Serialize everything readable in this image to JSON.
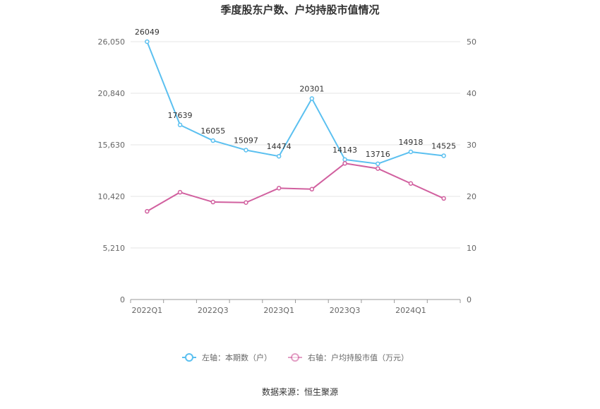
{
  "chart_data": {
    "type": "line",
    "title": "季度股东户数、户均持股市值情况",
    "categories": [
      "2022Q1",
      "2022Q2",
      "2022Q3",
      "2022Q4",
      "2023Q1",
      "2023Q2",
      "2023Q3",
      "2023Q4",
      "2024Q1",
      "2024Q2"
    ],
    "x_tick_labels": [
      "2022Q1",
      "",
      "2022Q3",
      "",
      "2023Q1",
      "",
      "2023Q3",
      "",
      "2024Q1",
      ""
    ],
    "y_left": {
      "ylim": [
        0,
        26050
      ],
      "ticks": [
        "0",
        "5,210",
        "10,420",
        "15,630",
        "20,840",
        "26,050"
      ],
      "tick_values": [
        0,
        5210,
        10420,
        15630,
        20840,
        26050
      ]
    },
    "y_right": {
      "ylim": [
        0,
        50
      ],
      "ticks": [
        "0",
        "10",
        "20",
        "30",
        "40",
        "50"
      ],
      "tick_values": [
        0,
        10,
        20,
        30,
        40,
        50
      ]
    },
    "grid": true,
    "legend_position": "bottom",
    "series": [
      {
        "name": "左轴：本期数（户）",
        "axis": "left",
        "color": "#5bc0f0",
        "values": [
          26049,
          17639,
          16055,
          15097,
          14474,
          20301,
          14143,
          13716,
          14918,
          14525
        ],
        "labels": [
          "26049",
          "17639",
          "16055",
          "15097",
          "14474",
          "20301",
          "14143",
          "13716",
          "14918",
          "14525"
        ]
      },
      {
        "name": "右轴：户均持股市值（万元）",
        "axis": "right",
        "color": "#d1609f",
        "values": [
          17.1,
          20.8,
          18.9,
          18.8,
          21.6,
          21.4,
          26.4,
          25.4,
          22.5,
          19.6
        ]
      }
    ]
  },
  "source_text": "数据来源：恒生聚源"
}
